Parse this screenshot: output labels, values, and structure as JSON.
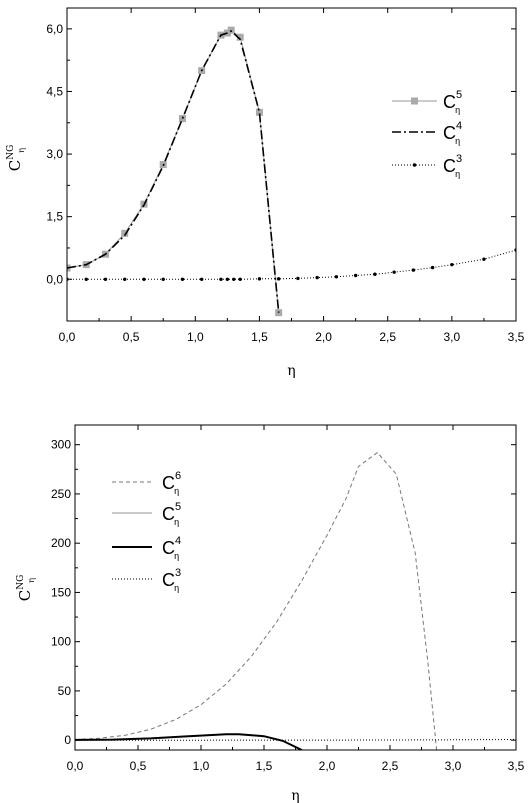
{
  "chart_data": [
    {
      "type": "line",
      "xlabel": "η",
      "ylabel": "C",
      "ylabel_sup": "NG",
      "ylabel_sub": "η",
      "xlim": [
        0.0,
        3.5
      ],
      "ylim": [
        -1.0,
        6.5
      ],
      "xticks": [
        "0,0",
        "0,5",
        "1,0",
        "1,5",
        "2,0",
        "2,5",
        "3,0",
        "3,5"
      ],
      "xtick_values": [
        0,
        0.5,
        1.0,
        1.5,
        2.0,
        2.5,
        3.0,
        3.5
      ],
      "yticks": [
        "0,0",
        "1,5",
        "3,0",
        "4,5",
        "6,0"
      ],
      "ytick_values": [
        0,
        1.5,
        3.0,
        4.5,
        6.0
      ],
      "grid": false,
      "legend_position": "right",
      "series": [
        {
          "name": "C",
          "sup": "5",
          "sub": "η",
          "style": "solid-square-markers",
          "color": "#aaaaaa",
          "x": [
            0.0,
            0.15,
            0.3,
            0.45,
            0.6,
            0.75,
            0.9,
            1.05,
            1.2,
            1.25,
            1.28,
            1.35,
            1.5,
            1.65
          ],
          "y": [
            0.27,
            0.35,
            0.6,
            1.1,
            1.8,
            2.75,
            3.85,
            5.0,
            5.85,
            5.9,
            5.97,
            5.8,
            4.0,
            -0.8
          ]
        },
        {
          "name": "C",
          "sup": "4",
          "sub": "η",
          "style": "dash-dot",
          "color": "#000000",
          "x": [
            0.0,
            0.15,
            0.3,
            0.45,
            0.6,
            0.75,
            0.9,
            1.05,
            1.2,
            1.25,
            1.28,
            1.35,
            1.5,
            1.65
          ],
          "y": [
            0.27,
            0.35,
            0.6,
            1.05,
            1.78,
            2.72,
            3.85,
            5.0,
            5.85,
            5.9,
            5.95,
            5.75,
            4.0,
            -0.8
          ]
        },
        {
          "name": "C",
          "sup": "3",
          "sub": "η",
          "style": "dotted-dot-markers",
          "color": "#000000",
          "x": [
            0.0,
            0.15,
            0.3,
            0.45,
            0.6,
            0.75,
            0.9,
            1.05,
            1.2,
            1.25,
            1.3,
            1.35,
            1.5,
            1.65,
            1.8,
            1.95,
            2.1,
            2.25,
            2.4,
            2.55,
            2.7,
            2.85,
            3.0,
            3.25,
            3.5
          ],
          "y": [
            0.0,
            0.0,
            0.0,
            0.0,
            0.0,
            0.0,
            0.0,
            0.0,
            0.0,
            0.0,
            0.0,
            0.0,
            0.01,
            0.01,
            0.02,
            0.04,
            0.06,
            0.09,
            0.12,
            0.17,
            0.22,
            0.28,
            0.35,
            0.48,
            0.7
          ]
        }
      ]
    },
    {
      "type": "line",
      "xlabel": "η",
      "ylabel": "C",
      "ylabel_sup": "NG",
      "ylabel_sub": "η",
      "xlim": [
        0.0,
        3.5
      ],
      "ylim": [
        -10,
        320
      ],
      "xticks": [
        "0,0",
        "0,5",
        "1,0",
        "1,5",
        "2,0",
        "2,5",
        "3,0",
        "3,5"
      ],
      "xtick_values": [
        0,
        0.5,
        1.0,
        1.5,
        2.0,
        2.5,
        3.0,
        3.5
      ],
      "yticks": [
        "0",
        "50",
        "100",
        "150",
        "200",
        "250",
        "300"
      ],
      "ytick_values": [
        0,
        50,
        100,
        150,
        200,
        250,
        300
      ],
      "grid": false,
      "legend_position": "top-left",
      "series": [
        {
          "name": "C",
          "sup": "6",
          "sub": "η",
          "style": "dashed",
          "color": "#777777",
          "x": [
            0.0,
            0.2,
            0.4,
            0.6,
            0.8,
            1.0,
            1.2,
            1.4,
            1.6,
            1.8,
            2.0,
            2.15,
            2.25,
            2.4,
            2.55,
            2.7,
            2.8,
            2.87
          ],
          "y": [
            0.5,
            2,
            5,
            11,
            21,
            36,
            57,
            85,
            120,
            162,
            208,
            245,
            278,
            292,
            270,
            190,
            80,
            -10
          ]
        },
        {
          "name": "C",
          "sup": "5",
          "sub": "η",
          "style": "solid",
          "color": "#aaaaaa",
          "x": [
            0.0,
            0.3,
            0.6,
            0.9,
            1.2,
            1.3,
            1.5,
            1.65,
            1.8
          ],
          "y": [
            0.3,
            0.6,
            1.8,
            3.9,
            5.9,
            6.0,
            4.0,
            -0.8,
            -10
          ]
        },
        {
          "name": "C",
          "sup": "4",
          "sub": "η",
          "style": "solid-thick",
          "color": "#000000",
          "x": [
            0.0,
            0.3,
            0.6,
            0.9,
            1.2,
            1.3,
            1.5,
            1.65,
            1.8
          ],
          "y": [
            0.3,
            0.6,
            1.8,
            3.9,
            5.9,
            6.0,
            4.0,
            -0.8,
            -10
          ]
        },
        {
          "name": "C",
          "sup": "3",
          "sub": "η",
          "style": "dotted",
          "color": "#000000",
          "x": [
            0.0,
            0.5,
            1.0,
            1.5,
            2.0,
            2.5,
            3.0,
            3.5
          ],
          "y": [
            0.0,
            0.0,
            0.0,
            0.01,
            0.03,
            0.16,
            0.35,
            0.7
          ]
        }
      ]
    }
  ]
}
